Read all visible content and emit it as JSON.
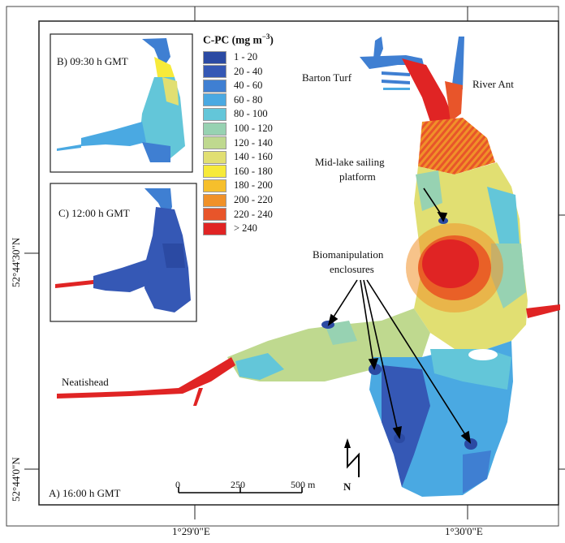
{
  "legend": {
    "title": "C-PC (mg m",
    "title_sup": "−3",
    "title_end": ")",
    "classes": [
      {
        "label": "1 - 20",
        "color": "#2b4aa3"
      },
      {
        "label": "20 - 40",
        "color": "#3558b5"
      },
      {
        "label": "40 - 60",
        "color": "#3f7fd2"
      },
      {
        "label": "60 - 80",
        "color": "#4aa9e2"
      },
      {
        "label": "80 - 100",
        "color": "#63c6d9"
      },
      {
        "label": "100 - 120",
        "color": "#97d2b2"
      },
      {
        "label": "120 - 140",
        "color": "#bfd98f"
      },
      {
        "label": "140 - 160",
        "color": "#e1df72"
      },
      {
        "label": "160 - 180",
        "color": "#f7ea3a"
      },
      {
        "label": "180 - 200",
        "color": "#f6bf2c"
      },
      {
        "label": "200 - 220",
        "color": "#f09129"
      },
      {
        "label": "220 - 240",
        "color": "#e8552a"
      },
      {
        "label": "> 240",
        "color": "#e02424"
      }
    ]
  },
  "panels": {
    "a": "A) 16:00 h GMT",
    "b": "B) 09:30 h GMT",
    "c": "C) 12:00 h GMT"
  },
  "places": {
    "barton_turf": "Barton Turf",
    "river_ant": "River Ant",
    "neatishead": "Neatishead",
    "platform_line1": "Mid-lake sailing",
    "platform_line2": "platform",
    "enclosures_line1": "Biomanipulation",
    "enclosures_line2": "enclosures"
  },
  "scalebar": {
    "t0": "0",
    "t1": "250",
    "t2": "500 m"
  },
  "axes": {
    "lon1": "1°29'0\"E",
    "lon2": "1°30'0\"E",
    "lat1": "52°44'30\"N",
    "lat2": "52°44'0\"N"
  },
  "north_symbol": "N"
}
